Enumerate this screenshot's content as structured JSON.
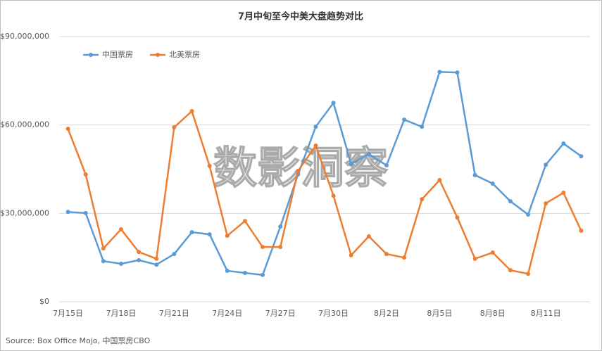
{
  "chart_data": {
    "type": "line",
    "title": "7月中旬至今中美大盘趋势对比",
    "source": "Source: Box Office Mojo, 中国票房CBO",
    "watermark": "数影洞察",
    "categories": [
      "7月15日",
      null,
      null,
      "7月18日",
      null,
      null,
      "7月21日",
      null,
      null,
      "7月24日",
      null,
      null,
      "7月27日",
      null,
      null,
      "7月30日",
      null,
      null,
      "8月2日",
      null,
      null,
      "8月5日",
      null,
      null,
      "8月8日",
      null,
      null,
      "8月11日",
      null,
      null
    ],
    "series": [
      {
        "name": "中国票房",
        "color": "#5b9bd5",
        "values": [
          30500000,
          30100000,
          13800000,
          12900000,
          14100000,
          12600000,
          16200000,
          23600000,
          22900000,
          10500000,
          9800000,
          9100000,
          25500000,
          43200000,
          59400000,
          67500000,
          46800000,
          50100000,
          46300000,
          61800000,
          59400000,
          78000000,
          77800000,
          43000000,
          40100000,
          34100000,
          29600000,
          46500000,
          53700000,
          49400000
        ]
      },
      {
        "name": "北美票房",
        "color": "#ed7d31",
        "values": [
          58700000,
          43200000,
          18100000,
          24600000,
          16900000,
          14600000,
          59200000,
          64700000,
          46100000,
          22400000,
          27400000,
          18600000,
          18600000,
          44400000,
          53000000,
          36000000,
          15800000,
          22200000,
          16200000,
          15000000,
          34800000,
          41300000,
          28600000,
          14600000,
          16700000,
          10700000,
          9500000,
          33400000,
          37000000,
          24100000
        ]
      }
    ],
    "ylim": [
      0,
      90000000
    ],
    "yticks": [
      {
        "value": 0,
        "label": "$0"
      },
      {
        "value": 30000000,
        "label": "$30,000,000"
      },
      {
        "value": 60000000,
        "label": "$60,000,000"
      },
      {
        "value": 90000000,
        "label": "$90,000,000"
      }
    ],
    "grid": true,
    "legend": "top-left"
  }
}
